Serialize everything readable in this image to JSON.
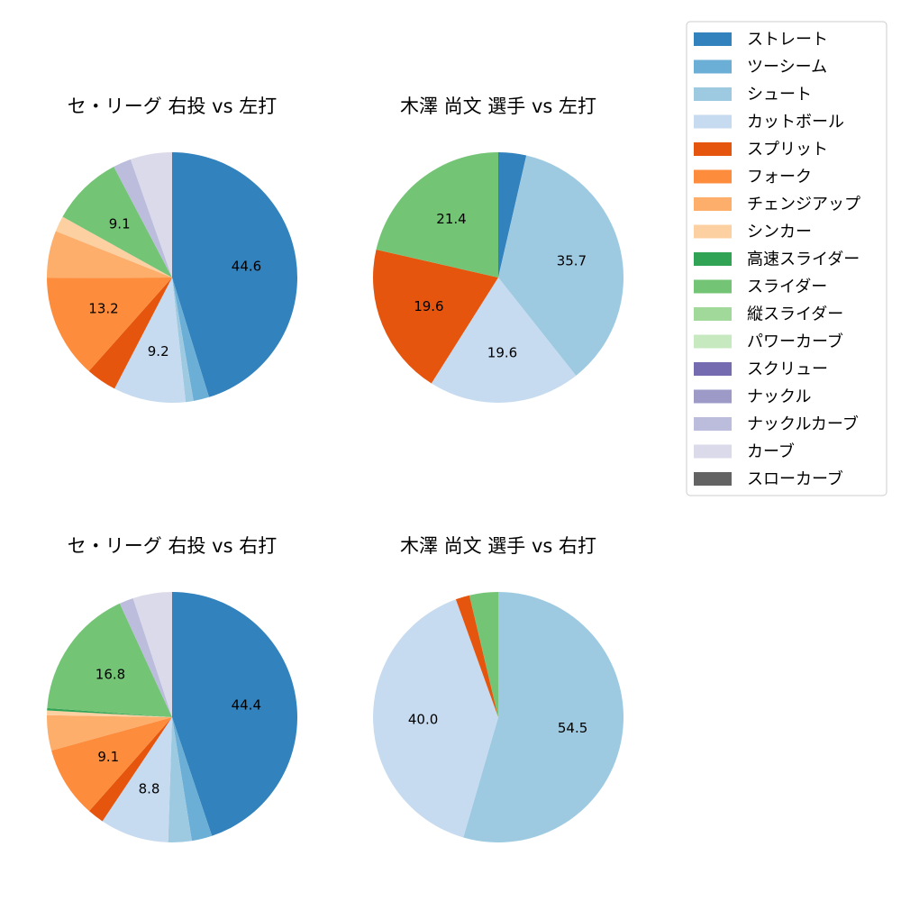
{
  "chart_data": {
    "type": "pie",
    "legend_position": "top-right",
    "legend": [
      {
        "name": "ストレート",
        "color": "#3182bd"
      },
      {
        "name": "ツーシーム",
        "color": "#6baed6"
      },
      {
        "name": "シュート",
        "color": "#9ecae1"
      },
      {
        "name": "カットボール",
        "color": "#c6dbef"
      },
      {
        "name": "スプリット",
        "color": "#e6550d"
      },
      {
        "name": "フォーク",
        "color": "#fd8d3c"
      },
      {
        "name": "チェンジアップ",
        "color": "#fdae6b"
      },
      {
        "name": "シンカー",
        "color": "#fdd0a2"
      },
      {
        "name": "高速スライダー",
        "color": "#31a354"
      },
      {
        "name": "スライダー",
        "color": "#74c476"
      },
      {
        "name": "縦スライダー",
        "color": "#a1d99b"
      },
      {
        "name": "パワーカーブ",
        "color": "#c7e9c0"
      },
      {
        "name": "スクリュー",
        "color": "#756bb1"
      },
      {
        "name": "ナックル",
        "color": "#9e9ac8"
      },
      {
        "name": "ナックルカーブ",
        "color": "#bcbddc"
      },
      {
        "name": "カーブ",
        "color": "#dadaeb"
      },
      {
        "name": "スローカーブ",
        "color": "#636363"
      }
    ],
    "pies": [
      {
        "title": "セ・リーグ 右投 vs 左打",
        "slices": [
          {
            "name": "ストレート",
            "value": 44.6,
            "label": "44.6"
          },
          {
            "name": "ツーシーム",
            "value": 2.0,
            "label": ""
          },
          {
            "name": "シュート",
            "value": 1.0,
            "label": ""
          },
          {
            "name": "カットボール",
            "value": 9.2,
            "label": "9.2"
          },
          {
            "name": "スプリット",
            "value": 3.9,
            "label": ""
          },
          {
            "name": "フォーク",
            "value": 13.2,
            "label": "13.2"
          },
          {
            "name": "チェンジアップ",
            "value": 6.0,
            "label": ""
          },
          {
            "name": "シンカー",
            "value": 2.0,
            "label": ""
          },
          {
            "name": "スライダー",
            "value": 9.1,
            "label": "9.1"
          },
          {
            "name": "ナックルカーブ",
            "value": 2.3,
            "label": ""
          },
          {
            "name": "カーブ",
            "value": 5.3,
            "label": ""
          }
        ]
      },
      {
        "title": "木澤 尚文 選手 vs 左打",
        "slices": [
          {
            "name": "ストレート",
            "value": 3.6,
            "label": ""
          },
          {
            "name": "シュート",
            "value": 35.7,
            "label": "35.7"
          },
          {
            "name": "カットボール",
            "value": 19.6,
            "label": "19.6"
          },
          {
            "name": "スプリット",
            "value": 19.6,
            "label": "19.6"
          },
          {
            "name": "スライダー",
            "value": 21.4,
            "label": "21.4"
          }
        ]
      },
      {
        "title": "セ・リーグ 右投 vs 右打",
        "slices": [
          {
            "name": "ストレート",
            "value": 44.4,
            "label": "44.4"
          },
          {
            "name": "ツーシーム",
            "value": 2.6,
            "label": ""
          },
          {
            "name": "シュート",
            "value": 3.0,
            "label": ""
          },
          {
            "name": "カットボール",
            "value": 8.8,
            "label": "8.8"
          },
          {
            "name": "スプリット",
            "value": 2.1,
            "label": ""
          },
          {
            "name": "フォーク",
            "value": 9.1,
            "label": "9.1"
          },
          {
            "name": "チェンジアップ",
            "value": 4.5,
            "label": ""
          },
          {
            "name": "シンカー",
            "value": 0.6,
            "label": ""
          },
          {
            "name": "高速スライダー",
            "value": 0.3,
            "label": ""
          },
          {
            "name": "スライダー",
            "value": 16.8,
            "label": "16.8"
          },
          {
            "name": "ナックルカーブ",
            "value": 1.8,
            "label": ""
          },
          {
            "name": "カーブ",
            "value": 5.0,
            "label": ""
          }
        ]
      },
      {
        "title": "木澤 尚文 選手 vs 右打",
        "slices": [
          {
            "name": "シュート",
            "value": 54.5,
            "label": "54.5"
          },
          {
            "name": "カットボール",
            "value": 40.0,
            "label": "40.0"
          },
          {
            "name": "スプリット",
            "value": 1.8,
            "label": ""
          },
          {
            "name": "スライダー",
            "value": 3.7,
            "label": ""
          }
        ]
      }
    ]
  }
}
